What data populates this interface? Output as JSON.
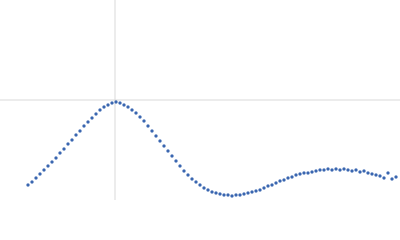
{
  "chart_data": {
    "type": "scatter",
    "x": [
      28,
      32,
      36,
      40,
      44,
      48,
      52,
      56,
      60,
      64,
      68,
      72,
      76,
      80,
      84,
      88,
      92,
      96,
      100,
      104,
      108,
      112,
      116,
      120,
      124,
      128,
      132,
      136,
      140,
      144,
      148,
      152,
      156,
      160,
      164,
      168,
      172,
      176,
      180,
      184,
      188,
      192,
      196,
      200,
      204,
      208,
      212,
      216,
      220,
      224,
      228,
      232,
      236,
      240,
      244,
      248,
      252,
      256,
      260,
      264,
      268,
      272,
      276,
      280,
      284,
      288,
      292,
      296,
      300,
      304,
      308,
      312,
      316,
      320,
      324,
      328,
      332,
      336,
      340,
      344,
      348,
      352,
      356,
      360,
      364,
      368,
      372,
      376,
      380,
      384,
      388,
      392,
      396
    ],
    "values": [
      15,
      18,
      22,
      26,
      30,
      34,
      38,
      42,
      47,
      51,
      56,
      60,
      65,
      69,
      74,
      78,
      82,
      86,
      90,
      93,
      95,
      97,
      98,
      97,
      95,
      93,
      90,
      87,
      83,
      79,
      74,
      69,
      64,
      59,
      54,
      49,
      44,
      39,
      34,
      29,
      25,
      21,
      18,
      15,
      12,
      10,
      8,
      7,
      6,
      5,
      5,
      4,
      5,
      5,
      6,
      7,
      8,
      9,
      10,
      12,
      14,
      15,
      17,
      19,
      20,
      22,
      23,
      25,
      26,
      27,
      27,
      28,
      29,
      30,
      30,
      31,
      30,
      31,
      30,
      31,
      30,
      29,
      30,
      28,
      29,
      27,
      26,
      25,
      24,
      22,
      27,
      21,
      23
    ],
    "color": "#3a66b0",
    "xlim": [
      0,
      400
    ],
    "ylim": [
      0,
      200
    ],
    "xticks": [
      115
    ],
    "yticks": [
      100
    ],
    "grid": true
  }
}
